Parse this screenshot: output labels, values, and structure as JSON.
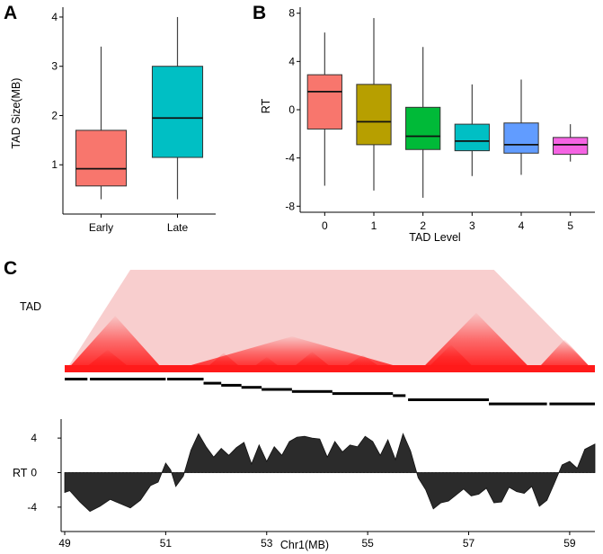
{
  "panels": {
    "a": "A",
    "b": "B",
    "c": "C"
  },
  "colors": {
    "early": "#f8766d",
    "late": "#00bfc4",
    "level": [
      "#f8766d",
      "#b79f00",
      "#00ba38",
      "#00bfc4",
      "#619cff",
      "#f564e3"
    ],
    "tad_map": "#ff1a1a",
    "rt_fill": "#2b2b2b"
  },
  "chart_data": [
    {
      "id": "panel-a",
      "type": "box",
      "title": "",
      "xlabel": "",
      "ylabel": "TAD Size(MB)",
      "categories": [
        "Early",
        "Late"
      ],
      "yticks": [
        "1",
        "2",
        "3",
        "4"
      ],
      "ylim": [
        0.0,
        4.2
      ],
      "boxes": [
        {
          "name": "Early",
          "min": 0.3,
          "q1": 0.57,
          "median": 0.92,
          "q3": 1.7,
          "max": 3.4
        },
        {
          "name": "Late",
          "min": 0.3,
          "q1": 1.15,
          "median": 1.95,
          "q3": 3.0,
          "max": 4.0
        }
      ]
    },
    {
      "id": "panel-b",
      "type": "box",
      "title": "",
      "xlabel": "TAD Level",
      "ylabel": "RT",
      "categories": [
        "0",
        "1",
        "2",
        "3",
        "4",
        "5"
      ],
      "yticks": [
        "8",
        "4",
        "0",
        "-4",
        "-8"
      ],
      "ylim": [
        -8.5,
        8.5
      ],
      "boxes": [
        {
          "name": "0",
          "min": -6.3,
          "q1": -1.6,
          "median": 1.5,
          "q3": 2.9,
          "max": 6.4
        },
        {
          "name": "1",
          "min": -6.7,
          "q1": -2.9,
          "median": -1.0,
          "q3": 2.1,
          "max": 7.6
        },
        {
          "name": "2",
          "min": -7.3,
          "q1": -3.3,
          "median": -2.2,
          "q3": 0.2,
          "max": 5.2
        },
        {
          "name": "3",
          "min": -5.5,
          "q1": -3.4,
          "median": -2.6,
          "q3": -1.2,
          "max": 2.1
        },
        {
          "name": "4",
          "min": -5.4,
          "q1": -3.6,
          "median": -2.9,
          "q3": -1.1,
          "max": 2.5
        },
        {
          "name": "5",
          "min": -4.3,
          "q1": -3.7,
          "median": -2.9,
          "q3": -2.3,
          "max": -1.2
        }
      ]
    },
    {
      "id": "panel-c",
      "type": "heatmap",
      "ylabel": "TAD",
      "xlim": [
        49.0,
        59.5
      ],
      "tads_level0": [
        [
          49.0,
          49.45
        ],
        [
          49.45,
          51.0
        ],
        [
          51.0,
          51.75
        ],
        [
          51.75,
          55.8
        ],
        [
          55.8,
          57.4
        ],
        [
          57.4,
          58.35
        ],
        [
          58.35,
          59.5
        ]
      ],
      "tad_peaks": [
        {
          "start": 49.0,
          "end": 59.5,
          "h": 1.0
        },
        {
          "start": 49.0,
          "end": 51.0,
          "h": 0.55
        },
        {
          "start": 51.0,
          "end": 56.0,
          "h": 0.35
        },
        {
          "start": 56.0,
          "end": 58.3,
          "h": 0.58
        },
        {
          "start": 58.3,
          "end": 59.5,
          "h": 0.32
        },
        {
          "start": 49.3,
          "end": 50.4,
          "h": 0.22
        },
        {
          "start": 51.7,
          "end": 52.6,
          "h": 0.19
        },
        {
          "start": 52.6,
          "end": 53.4,
          "h": 0.15
        },
        {
          "start": 53.4,
          "end": 54.4,
          "h": 0.2
        },
        {
          "start": 54.4,
          "end": 55.4,
          "h": 0.17
        },
        {
          "start": 56.1,
          "end": 57.2,
          "h": 0.27
        }
      ],
      "tad_bars": [
        [
          49.0,
          49.45,
          0
        ],
        [
          49.5,
          51.0,
          0
        ],
        [
          51.03,
          51.75,
          0
        ],
        [
          51.75,
          52.1,
          1
        ],
        [
          52.1,
          52.5,
          1.5
        ],
        [
          52.5,
          52.9,
          2
        ],
        [
          52.9,
          53.5,
          2.5
        ],
        [
          53.5,
          54.3,
          3
        ],
        [
          54.3,
          55.5,
          3.5
        ],
        [
          55.5,
          55.75,
          4
        ],
        [
          55.8,
          57.4,
          5
        ],
        [
          57.4,
          58.55,
          6
        ],
        [
          58.6,
          59.5,
          6
        ]
      ]
    },
    {
      "id": "panel-c-rt",
      "type": "area",
      "xlabel": "Chr1(MB)",
      "ylabel": "RT",
      "ylim": [
        -6.2,
        6.2
      ],
      "xlim": [
        49.0,
        59.5
      ],
      "xticks": [
        "49",
        "51",
        "53",
        "55",
        "57",
        "59"
      ],
      "yticks": [
        "4",
        "0",
        "-4"
      ],
      "x": [
        49.0,
        49.1,
        49.3,
        49.5,
        49.7,
        49.9,
        50.1,
        50.3,
        50.5,
        50.7,
        50.85,
        51.0,
        51.1,
        51.2,
        51.35,
        51.5,
        51.65,
        51.8,
        51.95,
        52.1,
        52.25,
        52.4,
        52.55,
        52.7,
        52.85,
        53.0,
        53.15,
        53.3,
        53.45,
        53.6,
        53.75,
        53.9,
        54.05,
        54.2,
        54.35,
        54.5,
        54.65,
        54.8,
        54.95,
        55.1,
        55.25,
        55.4,
        55.55,
        55.7,
        55.85,
        56.0,
        56.15,
        56.3,
        56.45,
        56.6,
        56.75,
        56.9,
        57.05,
        57.2,
        57.35,
        57.5,
        57.65,
        57.8,
        57.95,
        58.1,
        58.25,
        58.4,
        58.55,
        58.7,
        58.85,
        59.0,
        59.15,
        59.3,
        59.5
      ],
      "values": [
        -2.3,
        -2.1,
        -3.4,
        -4.5,
        -3.9,
        -3.1,
        -3.6,
        -4.1,
        -3.2,
        -1.5,
        -1.1,
        1.1,
        0.3,
        -1.6,
        -0.4,
        2.6,
        4.5,
        3.0,
        1.8,
        2.8,
        2.0,
        2.9,
        3.5,
        1.0,
        3.2,
        1.3,
        3.0,
        2.0,
        3.6,
        4.1,
        4.2,
        4.0,
        3.9,
        1.8,
        3.6,
        2.4,
        3.2,
        3.0,
        4.2,
        3.6,
        2.0,
        3.8,
        1.5,
        4.5,
        2.5,
        -0.6,
        -2.0,
        -4.2,
        -3.5,
        -3.3,
        -2.6,
        -1.9,
        -2.7,
        -2.5,
        -1.8,
        -3.5,
        -3.4,
        -1.7,
        -2.2,
        -2.4,
        -1.6,
        -3.9,
        -3.2,
        -1.2,
        0.9,
        1.3,
        0.5,
        2.7,
        3.3
      ]
    }
  ]
}
